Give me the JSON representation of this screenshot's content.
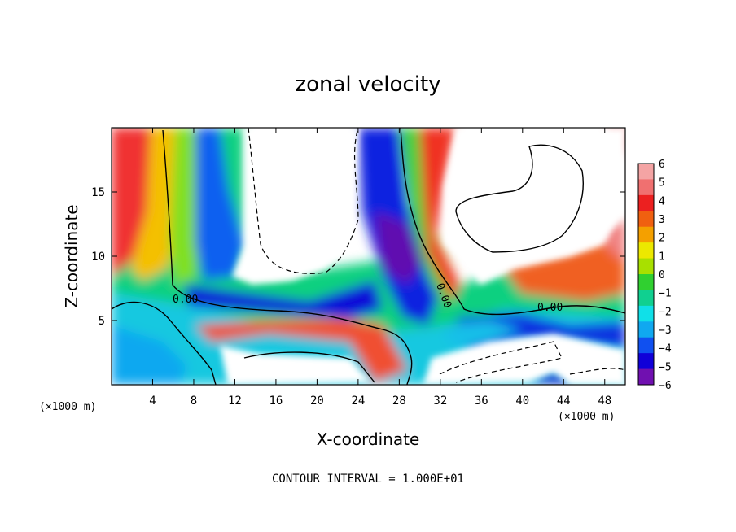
{
  "chart_data": {
    "type": "heatmap",
    "title": "zonal velocity",
    "xlabel": "X-coordinate",
    "ylabel": "Z-coordinate",
    "x_unit": "(×1000 m)",
    "y_unit": "(×1000 m)",
    "xlim": [
      0,
      50
    ],
    "ylim": [
      0,
      20
    ],
    "x_ticks": [
      4,
      8,
      12,
      16,
      20,
      24,
      28,
      32,
      36,
      40,
      44,
      48
    ],
    "y_ticks": [
      5,
      10,
      15
    ],
    "colorbar": {
      "min": -6,
      "max": 6,
      "ticks": [
        6,
        5,
        4,
        3,
        2,
        1,
        0,
        -1,
        -2,
        -3,
        -4,
        -5,
        -6
      ],
      "colors": [
        "#f4a4a4",
        "#f07070",
        "#ec2020",
        "#f06010",
        "#f4a000",
        "#ece800",
        "#a8e000",
        "#30d030",
        "#10d090",
        "#10e0e8",
        "#10a8f0",
        "#1050f0",
        "#1000d8",
        "#7010b0"
      ]
    },
    "contour_labels": [
      {
        "text": "0.00",
        "x": 7.2,
        "z": 6.8
      },
      {
        "text": "0.00",
        "x": 32.2,
        "z": 7.5
      },
      {
        "text": "0.00",
        "x": 42.8,
        "z": 6.1
      }
    ],
    "footnote": "CONTOUR INTERVAL = 1.000E+01"
  }
}
